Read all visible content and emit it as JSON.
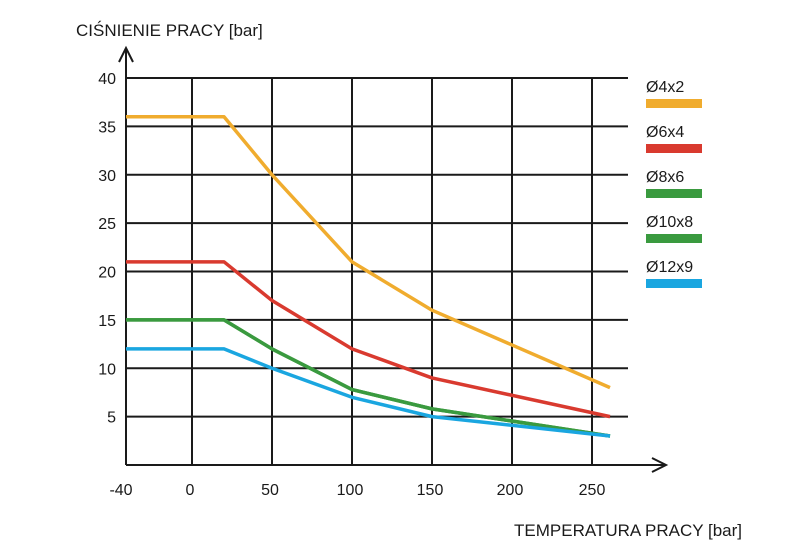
{
  "chart_data": {
    "type": "line",
    "ylabel": "CIŚNIENIE PRACY [bar]",
    "xlabel": "TEMPERATURA PRACY [bar]",
    "xticks": [
      "-40",
      "0",
      "50",
      "100",
      "150",
      "200",
      "250"
    ],
    "yticks": [
      "5",
      "10",
      "15",
      "20",
      "25",
      "30",
      "35",
      "40"
    ],
    "xlim": [
      -40,
      260
    ],
    "ylim": [
      0,
      40
    ],
    "grid": true,
    "legend_position": "right",
    "series": [
      {
        "name": "Ø4x2",
        "color": "#f0ac2e",
        "x": [
          -40,
          20,
          50,
          100,
          150,
          260
        ],
        "y": [
          36,
          36,
          30,
          21,
          16,
          8
        ]
      },
      {
        "name": "Ø6x4",
        "color": "#d93a2f",
        "x": [
          -40,
          20,
          50,
          100,
          150,
          260
        ],
        "y": [
          21,
          21,
          17,
          12,
          9,
          5
        ]
      },
      {
        "name": "Ø8x6",
        "color": "#3a9a3f",
        "x": [
          -40,
          20,
          50,
          100,
          150,
          260
        ],
        "y": [
          15,
          15,
          12,
          7.8,
          5.8,
          3
        ]
      },
      {
        "name": "Ø10x8",
        "color": "#3a9a3f",
        "x": [
          -40,
          20,
          50,
          100,
          150,
          260
        ],
        "y": [
          15,
          15,
          12,
          7.8,
          5.8,
          3
        ]
      },
      {
        "name": "Ø12x9",
        "color": "#1aa6e0",
        "x": [
          -40,
          20,
          50,
          100,
          150,
          260
        ],
        "y": [
          12,
          12,
          10,
          7,
          5,
          3
        ]
      }
    ]
  }
}
